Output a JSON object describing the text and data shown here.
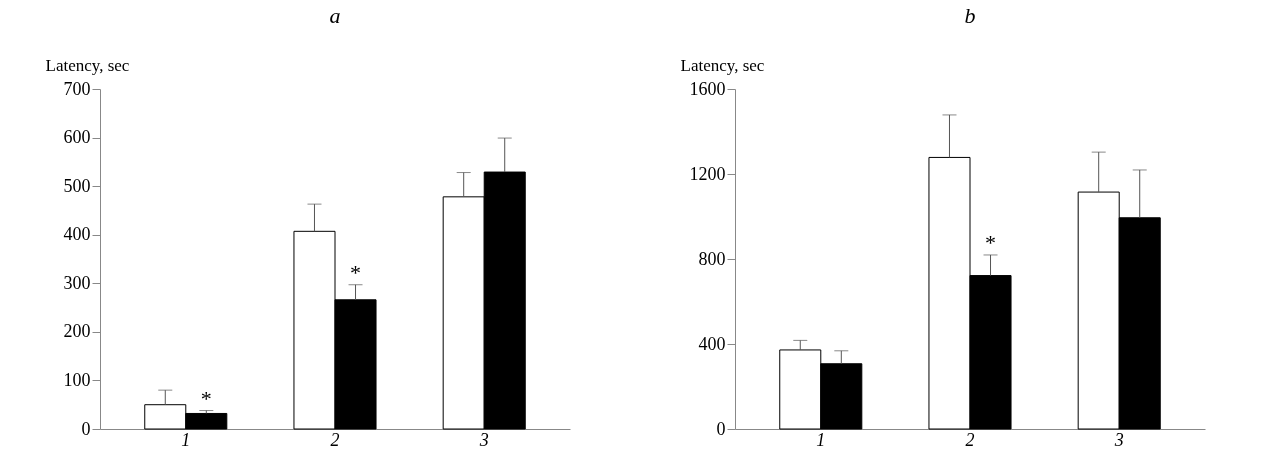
{
  "chart_data": [
    {
      "type": "bar",
      "title": "a",
      "ylabel": "Latency, sec",
      "categories": [
        "1",
        "2",
        "3"
      ],
      "ylim": [
        0,
        700
      ],
      "yticks": [
        0,
        100,
        200,
        300,
        400,
        500,
        600,
        700
      ],
      "grid": false,
      "series": [
        {
          "color": "#ffffff",
          "values": [
            50,
            407,
            478
          ],
          "errors": [
            [
              50,
              80
            ],
            [
              407,
              463
            ],
            [
              478,
              528
            ]
          ]
        },
        {
          "color": "#000000",
          "values": [
            32,
            266,
            529
          ],
          "errors": [
            [
              32,
              38
            ],
            [
              266,
              297
            ],
            [
              529,
              599
            ]
          ]
        }
      ],
      "annotations": [
        {
          "text": "*",
          "x": "1",
          "y": 38
        },
        {
          "text": "*",
          "x": "2",
          "y": 297
        }
      ]
    },
    {
      "type": "bar",
      "title": "b",
      "ylabel": "Latency, sec",
      "categories": [
        "1",
        "2",
        "3"
      ],
      "ylim": [
        0,
        1600
      ],
      "yticks": [
        0,
        400,
        800,
        1200,
        1600
      ],
      "grid": false,
      "series": [
        {
          "color": "#ffffff",
          "values": [
            372,
            1278,
            1115
          ],
          "errors": [
            [
              372,
              417
            ],
            [
              1278,
              1478
            ],
            [
              1115,
              1303
            ]
          ]
        },
        {
          "color": "#000000",
          "values": [
            307,
            722,
            994
          ],
          "errors": [
            [
              307,
              368
            ],
            [
              722,
              819
            ],
            [
              994,
              1219
            ]
          ]
        }
      ],
      "annotations": [
        {
          "text": "*",
          "x": "2",
          "y": 819
        }
      ]
    }
  ]
}
